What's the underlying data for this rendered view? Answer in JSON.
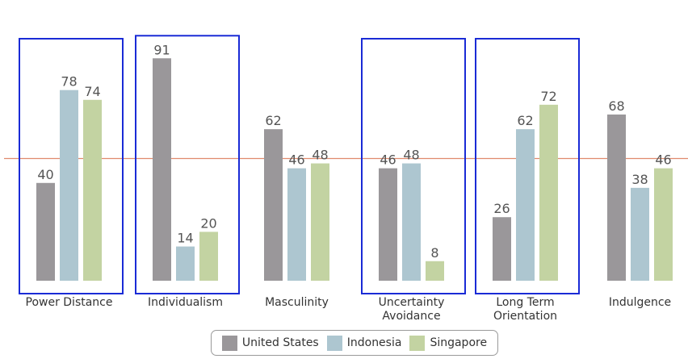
{
  "chart_data": {
    "type": "bar",
    "categories": [
      [
        "Power Distance"
      ],
      [
        "Individualism"
      ],
      [
        "Masculinity"
      ],
      [
        "Uncertainty",
        "Avoidance"
      ],
      [
        "Long Term",
        "Orientation"
      ],
      [
        "Indulgence"
      ]
    ],
    "series": [
      {
        "name": "United States",
        "color": "#9a979a",
        "values": [
          40,
          91,
          62,
          46,
          26,
          68
        ]
      },
      {
        "name": "Indonesia",
        "color": "#adc6d0",
        "values": [
          78,
          14,
          46,
          48,
          62,
          38
        ]
      },
      {
        "name": "Singapore",
        "color": "#c3d3a2",
        "values": [
          74,
          20,
          48,
          8,
          72,
          46
        ]
      }
    ],
    "ylim": [
      0,
      100
    ],
    "reference_line": {
      "value": 50,
      "color": "#e08a6e"
    },
    "highlighted_categories": [
      0,
      1,
      3,
      4
    ],
    "highlight_color": "#1a2bd6",
    "legend_position": "bottom-center",
    "grid": false
  }
}
